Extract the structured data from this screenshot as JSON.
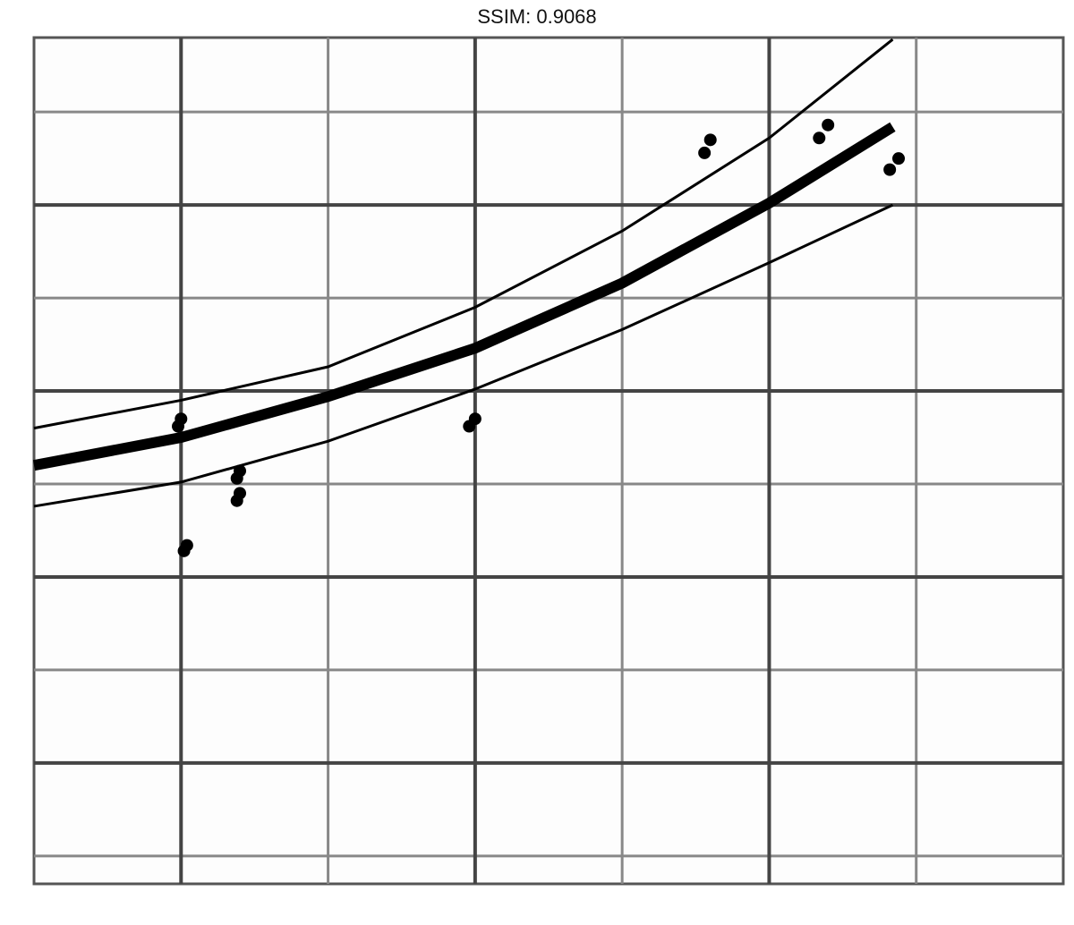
{
  "chart_data": {
    "type": "scatter",
    "title": "SSIM: 0.9068",
    "x": [
      1.0,
      0.99,
      1.02,
      1.01,
      1.2,
      1.19,
      1.2,
      1.19,
      2.0,
      1.98,
      2.8,
      2.78,
      3.2,
      3.17,
      3.44,
      3.41
    ],
    "y": [
      2.85,
      2.81,
      2.17,
      2.14,
      2.57,
      2.53,
      2.45,
      2.41,
      2.85,
      2.81,
      4.35,
      4.28,
      4.43,
      4.36,
      4.25,
      4.19
    ],
    "fit": {
      "x": [
        0.5,
        1,
        1.5,
        2,
        2.5,
        3,
        3.42
      ],
      "y": [
        2.6,
        2.75,
        2.97,
        3.23,
        3.58,
        4.01,
        4.42
      ],
      "upper": [
        2.8,
        2.95,
        3.13,
        3.45,
        3.86,
        4.36,
        4.89
      ],
      "lower": [
        2.38,
        2.51,
        2.73,
        3.01,
        3.33,
        3.69,
        4.0
      ]
    },
    "color": "#000000",
    "xlim": [
      0.5,
      4
    ],
    "ylim": [
      0.35,
      4.9
    ],
    "xticks": [
      1,
      2,
      3
    ],
    "yticks": [
      1,
      2,
      3,
      4
    ],
    "xminor": [
      1.5,
      2.5,
      3.5
    ],
    "yminor": [
      0.5,
      1.5,
      2.5,
      3.5,
      4.5
    ],
    "grid": true
  }
}
